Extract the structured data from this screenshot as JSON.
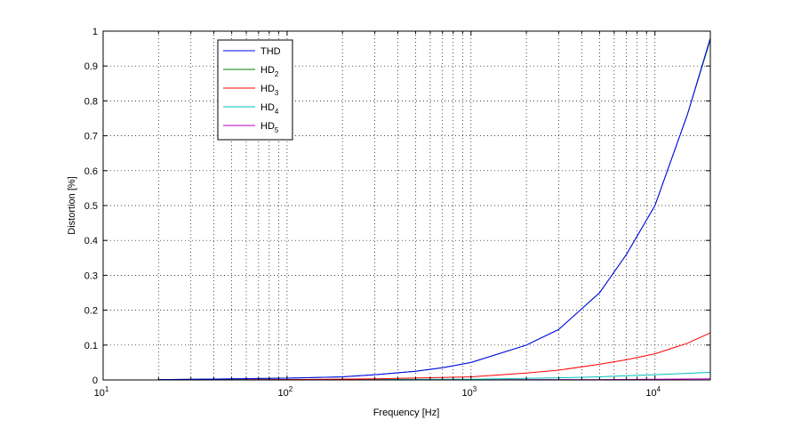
{
  "chart_data": {
    "type": "line",
    "xlabel": "Frequency [Hz]",
    "ylabel": "Distortion [%]",
    "x_scale": "log",
    "xlim": [
      10,
      20000
    ],
    "ylim": [
      0,
      1
    ],
    "grid": true,
    "legend_position": "top-left",
    "x_tick_labels": [
      {
        "base": "10",
        "exp": "1",
        "value": 10
      },
      {
        "base": "10",
        "exp": "2",
        "value": 100
      },
      {
        "base": "10",
        "exp": "3",
        "value": 1000
      },
      {
        "base": "10",
        "exp": "4",
        "value": 10000
      }
    ],
    "y_ticks": [
      0,
      0.1,
      0.2,
      0.3,
      0.4,
      0.5,
      0.6,
      0.7,
      0.8,
      0.9,
      1
    ],
    "y_tick_labels": [
      "0",
      "0.1",
      "0.2",
      "0.3",
      "0.4",
      "0.5",
      "0.6",
      "0.7",
      "0.8",
      "0.9",
      "1"
    ],
    "series": [
      {
        "name": "THD",
        "sub": "",
        "color": "#0000ff",
        "x": [
          20,
          50,
          100,
          200,
          300,
          500,
          700,
          1000,
          2000,
          3000,
          5000,
          7000,
          10000,
          15000,
          20000
        ],
        "y": [
          0.001,
          0.003,
          0.005,
          0.009,
          0.015,
          0.025,
          0.035,
          0.05,
          0.1,
          0.145,
          0.25,
          0.36,
          0.5,
          0.76,
          0.98
        ]
      },
      {
        "name": "HD",
        "sub": "2",
        "color": "#008000",
        "x": [
          20,
          50,
          100,
          200,
          300,
          500,
          700,
          1000,
          2000,
          3000,
          5000,
          7000,
          10000,
          15000,
          20000
        ],
        "y": [
          0.001,
          0.003,
          0.005,
          0.009,
          0.015,
          0.025,
          0.035,
          0.05,
          0.1,
          0.145,
          0.25,
          0.36,
          0.5,
          0.76,
          0.975
        ]
      },
      {
        "name": "HD",
        "sub": "3",
        "color": "#ff0000",
        "x": [
          20,
          100,
          300,
          1000,
          2000,
          3000,
          5000,
          7000,
          10000,
          15000,
          20000
        ],
        "y": [
          0,
          0.001,
          0.003,
          0.009,
          0.02,
          0.028,
          0.045,
          0.058,
          0.075,
          0.105,
          0.135
        ]
      },
      {
        "name": "HD",
        "sub": "4",
        "color": "#00bfbf",
        "x": [
          20,
          1000,
          3000,
          5000,
          7000,
          10000,
          15000,
          20000
        ],
        "y": [
          0,
          0.002,
          0.006,
          0.009,
          0.012,
          0.015,
          0.019,
          0.022
        ]
      },
      {
        "name": "HD",
        "sub": "5",
        "color": "#bf00bf",
        "x": [
          20,
          1000,
          5000,
          10000,
          20000
        ],
        "y": [
          0,
          0.0005,
          0.001,
          0.002,
          0.003
        ]
      }
    ]
  }
}
